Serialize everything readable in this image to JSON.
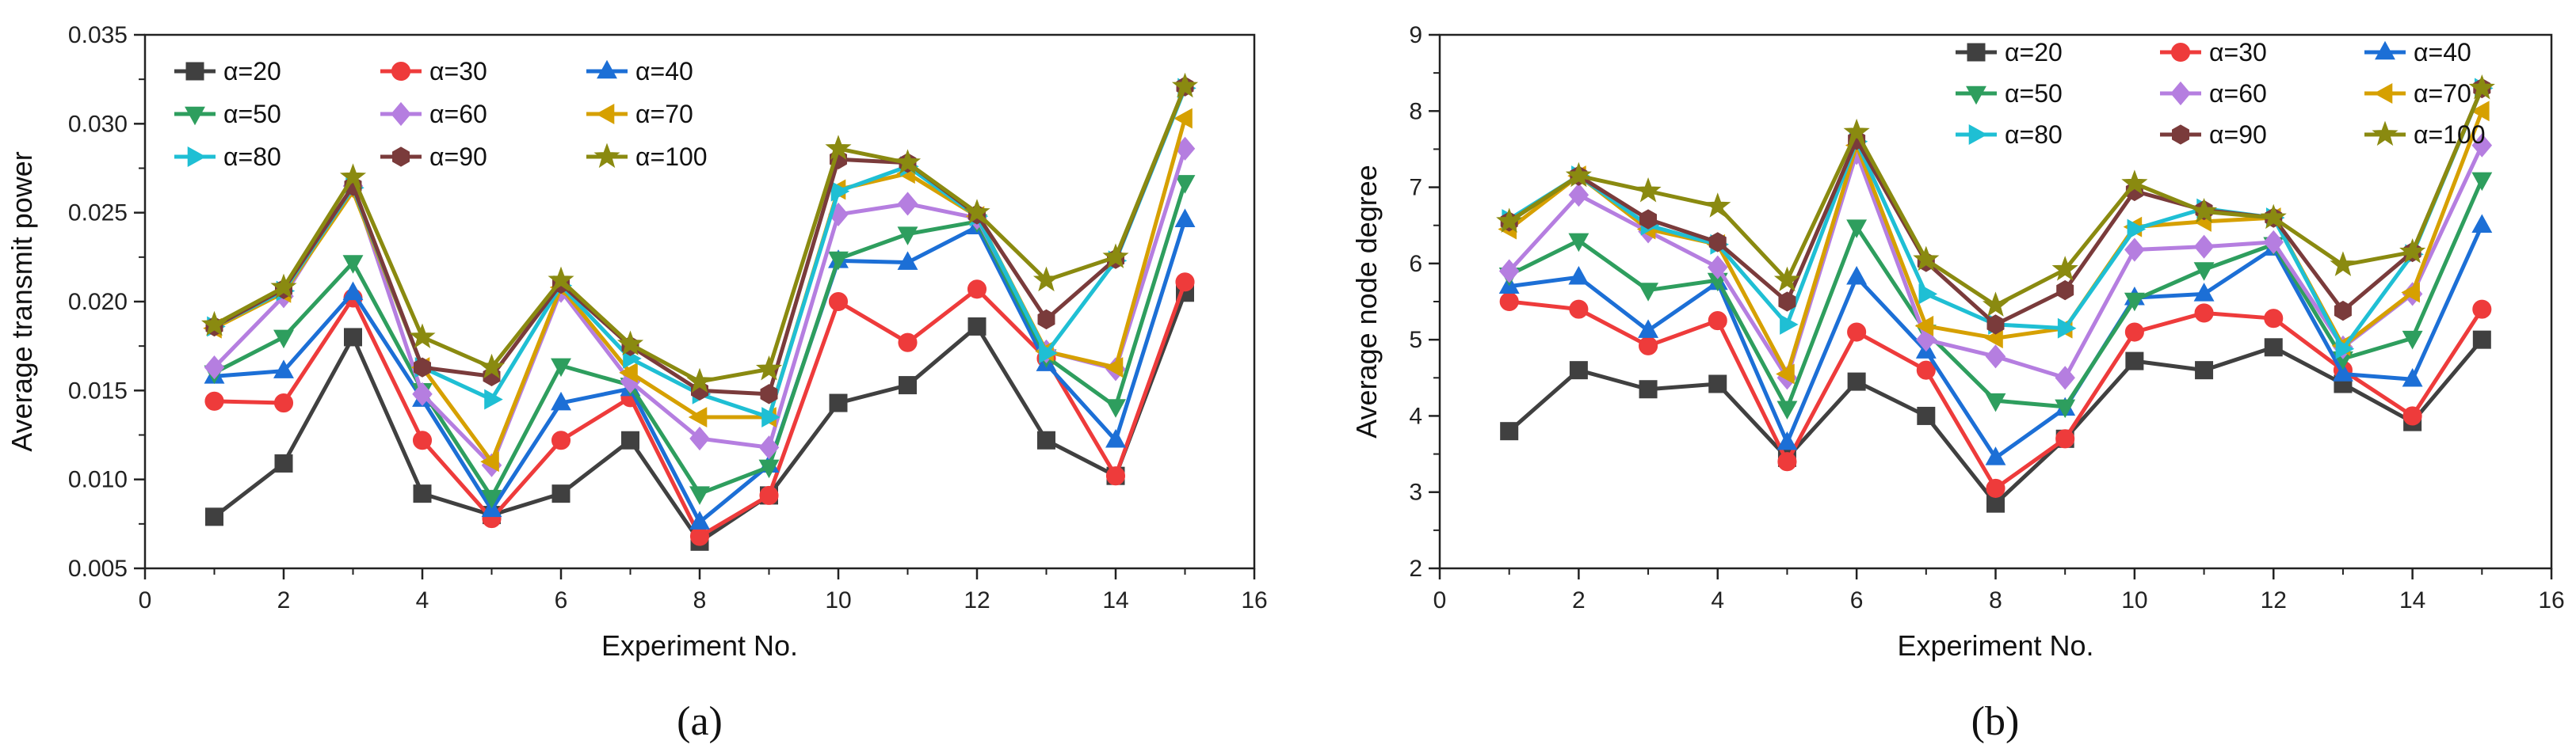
{
  "figure": {
    "panels": [
      "(a)",
      "(b)"
    ]
  },
  "styles": {
    "series": [
      {
        "color": "#404040",
        "marker": "square"
      },
      {
        "color": "#ee3b3b",
        "marker": "circle"
      },
      {
        "color": "#1c6fd6",
        "marker": "triangle-up"
      },
      {
        "color": "#2e9e5e",
        "marker": "triangle-down"
      },
      {
        "color": "#b57ee0",
        "marker": "diamond"
      },
      {
        "color": "#d6a000",
        "marker": "triangle-left"
      },
      {
        "color": "#1fbfd4",
        "marker": "triangle-right"
      },
      {
        "color": "#7a3b3b",
        "marker": "hexagon"
      },
      {
        "color": "#8a8a10",
        "marker": "star"
      }
    ]
  },
  "chart_data": [
    {
      "type": "line",
      "panel": "(a)",
      "title": "",
      "xlabel": "Experiment No.",
      "ylabel": "Average transmit power",
      "xlim": [
        0,
        16
      ],
      "ylim": [
        0.005,
        0.035
      ],
      "xticks": [
        "0",
        "2",
        "4",
        "6",
        "8",
        "10",
        "12",
        "14",
        "16"
      ],
      "yticks": [
        "0.005",
        "0.010",
        "0.015",
        "0.020",
        "0.025",
        "0.030",
        "0.035"
      ],
      "x": [
        1,
        2,
        3,
        4,
        5,
        6,
        7,
        8,
        9,
        10,
        11,
        12,
        13,
        14,
        15
      ],
      "legend_position": "top-left",
      "series": [
        {
          "name": "α=20",
          "values": [
            0.0079,
            0.0109,
            0.018,
            0.0092,
            0.008,
            0.0092,
            0.0122,
            0.0065,
            0.0091,
            0.0143,
            0.0153,
            0.0186,
            0.0122,
            0.0102,
            0.0205
          ]
        },
        {
          "name": "α=30",
          "values": [
            0.0144,
            0.0143,
            0.0202,
            0.0122,
            0.0078,
            0.0122,
            0.0146,
            0.0068,
            0.0091,
            0.02,
            0.0177,
            0.0207,
            0.0168,
            0.0102,
            0.0211
          ]
        },
        {
          "name": "α=40",
          "values": [
            0.0158,
            0.0161,
            0.0205,
            0.0145,
            0.0083,
            0.0143,
            0.0151,
            0.0076,
            0.0108,
            0.0223,
            0.0222,
            0.0242,
            0.0165,
            0.0122,
            0.0246
          ]
        },
        {
          "name": "α=50",
          "values": [
            0.016,
            0.018,
            0.0222,
            0.015,
            0.009,
            0.0164,
            0.0153,
            0.0092,
            0.0107,
            0.0224,
            0.0238,
            0.0245,
            0.0169,
            0.0141,
            0.0267
          ]
        },
        {
          "name": "α=60",
          "values": [
            0.0163,
            0.0203,
            0.0265,
            0.0148,
            0.0108,
            0.0206,
            0.0155,
            0.0123,
            0.0118,
            0.0249,
            0.0255,
            0.0247,
            0.0172,
            0.0162,
            0.0286
          ]
        },
        {
          "name": "α=70",
          "values": [
            0.0185,
            0.0205,
            0.0262,
            0.0163,
            0.011,
            0.0208,
            0.016,
            0.0135,
            0.0135,
            0.0263,
            0.0272,
            0.0248,
            0.0172,
            0.0163,
            0.0303
          ]
        },
        {
          "name": "α=80",
          "values": [
            0.0186,
            0.0206,
            0.0264,
            0.0163,
            0.0145,
            0.0209,
            0.0168,
            0.0148,
            0.0135,
            0.0262,
            0.0276,
            0.0248,
            0.0171,
            0.0223,
            0.032
          ]
        },
        {
          "name": "α=90",
          "values": [
            0.0186,
            0.0207,
            0.0265,
            0.0163,
            0.0158,
            0.021,
            0.0175,
            0.015,
            0.0148,
            0.028,
            0.0278,
            0.0249,
            0.019,
            0.0224,
            0.0321
          ]
        },
        {
          "name": "α=100",
          "values": [
            0.0187,
            0.0208,
            0.027,
            0.018,
            0.0163,
            0.0212,
            0.0176,
            0.0155,
            0.0162,
            0.0286,
            0.0278,
            0.025,
            0.0212,
            0.0225,
            0.0321
          ]
        }
      ]
    },
    {
      "type": "line",
      "panel": "(b)",
      "title": "",
      "xlabel": "Experiment No.",
      "ylabel": "Average node degree",
      "xlim": [
        0,
        16
      ],
      "ylim": [
        2,
        9
      ],
      "xticks": [
        "0",
        "2",
        "4",
        "6",
        "8",
        "10",
        "12",
        "14",
        "16"
      ],
      "yticks": [
        "2",
        "3",
        "4",
        "5",
        "6",
        "7",
        "8",
        "9"
      ],
      "x": [
        1,
        2,
        3,
        4,
        5,
        6,
        7,
        8,
        9,
        10,
        11,
        12,
        13,
        14,
        15
      ],
      "legend_position": "top-right",
      "series": [
        {
          "name": "α=20",
          "values": [
            3.8,
            4.6,
            4.35,
            4.42,
            3.45,
            4.45,
            4.0,
            2.85,
            3.7,
            4.72,
            4.6,
            4.9,
            4.42,
            3.92,
            5.0
          ]
        },
        {
          "name": "α=30",
          "values": [
            5.5,
            5.4,
            4.92,
            5.25,
            3.4,
            5.1,
            4.6,
            3.05,
            3.7,
            5.1,
            5.35,
            5.28,
            4.6,
            4.0,
            5.4
          ]
        },
        {
          "name": "α=40",
          "values": [
            5.7,
            5.82,
            5.12,
            5.75,
            3.65,
            5.82,
            4.85,
            3.45,
            4.1,
            5.55,
            5.6,
            6.2,
            4.55,
            4.48,
            6.5
          ]
        },
        {
          "name": "α=50",
          "values": [
            5.85,
            6.3,
            5.65,
            5.78,
            4.1,
            6.48,
            5.1,
            4.2,
            4.12,
            5.52,
            5.92,
            6.25,
            4.75,
            5.02,
            7.1
          ]
        },
        {
          "name": "α=60",
          "values": [
            5.9,
            6.9,
            6.42,
            5.95,
            4.5,
            7.45,
            5.0,
            4.78,
            4.5,
            6.18,
            6.22,
            6.28,
            4.9,
            5.6,
            7.55
          ]
        },
        {
          "name": "α=70",
          "values": [
            6.45,
            7.15,
            6.45,
            6.25,
            4.55,
            7.55,
            5.18,
            5.02,
            5.15,
            6.48,
            6.55,
            6.6,
            4.92,
            5.62,
            8.0
          ]
        },
        {
          "name": "α=80",
          "values": [
            6.58,
            7.15,
            6.5,
            6.25,
            5.2,
            7.6,
            5.6,
            5.2,
            5.15,
            6.45,
            6.72,
            6.6,
            4.88,
            6.12,
            8.3
          ]
        },
        {
          "name": "α=90",
          "values": [
            6.55,
            7.15,
            6.58,
            6.28,
            5.5,
            7.62,
            6.02,
            5.2,
            5.65,
            6.95,
            6.7,
            6.6,
            5.38,
            6.15,
            8.3
          ]
        },
        {
          "name": "α=100",
          "values": [
            6.55,
            7.15,
            6.95,
            6.75,
            5.78,
            7.72,
            6.05,
            5.45,
            5.92,
            7.05,
            6.68,
            6.6,
            5.98,
            6.15,
            8.3
          ]
        }
      ]
    }
  ]
}
